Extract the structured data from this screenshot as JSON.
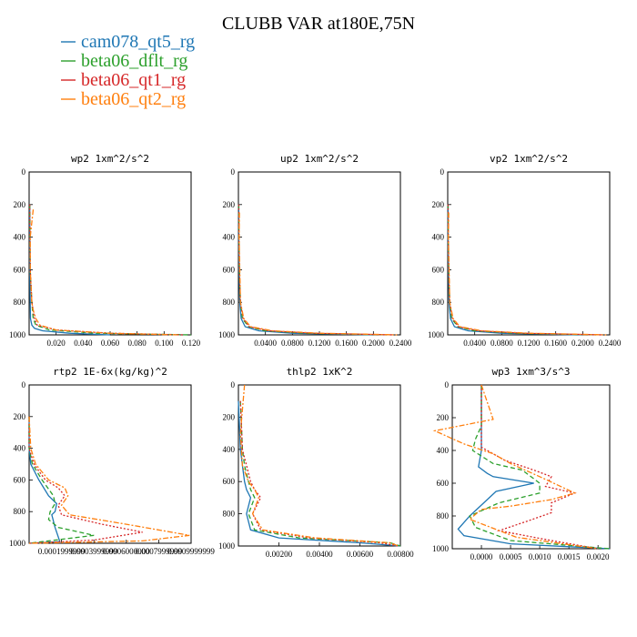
{
  "title": "CLUBB VAR at180E,75N",
  "legend": [
    {
      "label": "cam078_qt5_rg",
      "color": "#1f77b4",
      "dash": "solid"
    },
    {
      "label": "beta06_dflt_rg",
      "color": "#2ca02c",
      "dash": "dashed"
    },
    {
      "label": "beta06_qt1_rg",
      "color": "#d62728",
      "dash": "dotted"
    },
    {
      "label": "beta06_qt2_rg",
      "color": "#ff7f0e",
      "dash": "dashdot"
    }
  ],
  "chart_data": [
    {
      "type": "line",
      "title": "wp2  1xm^2/s^2",
      "xlim": [
        0.0,
        0.12
      ],
      "ylim": [
        1000,
        0
      ],
      "xticks": [
        "0.020",
        "0.040",
        "0.060",
        "0.080",
        "0.100",
        "0.120"
      ],
      "yticks": [
        "0",
        "200",
        "400",
        "600",
        "800",
        "1000"
      ],
      "series": [
        {
          "x": [
            0.0005,
            0.0005,
            0.0005,
            0.0008,
            0.001,
            0.002,
            0.004,
            0.01,
            0.03,
            0.06
          ],
          "y": [
            200,
            400,
            600,
            800,
            900,
            940,
            960,
            975,
            990,
            1000
          ]
        },
        {
          "x": [
            0.0005,
            0.0006,
            0.0008,
            0.002,
            0.0025,
            0.003,
            0.005,
            0.015,
            0.05,
            0.12
          ],
          "y": [
            200,
            400,
            600,
            800,
            850,
            900,
            940,
            970,
            990,
            1000
          ]
        },
        {
          "x": [
            0.0005,
            0.0006,
            0.0008,
            0.002,
            0.003,
            0.004,
            0.006,
            0.02,
            0.06,
            0.115
          ],
          "y": [
            200,
            400,
            600,
            800,
            850,
            900,
            940,
            970,
            990,
            1000
          ]
        },
        {
          "x": [
            0.003,
            0.0008,
            0.0008,
            0.002,
            0.003,
            0.005,
            0.008,
            0.02,
            0.06,
            0.11
          ],
          "y": [
            230,
            400,
            600,
            800,
            850,
            900,
            940,
            970,
            990,
            1000
          ]
        }
      ]
    },
    {
      "type": "line",
      "title": "up2  1xm^2/s^2",
      "xlim": [
        0.0,
        0.24
      ],
      "ylim": [
        1000,
        0
      ],
      "xticks": [
        "0.0400",
        "0.0800",
        "0.1200",
        "0.1600",
        "0.2000",
        "0.2400"
      ],
      "yticks": [
        "0",
        "200",
        "400",
        "600",
        "800",
        "1000"
      ],
      "series": [
        {
          "x": [
            0.0005,
            0.0005,
            0.001,
            0.002,
            0.004,
            0.01,
            0.03,
            0.08,
            0.2
          ],
          "y": [
            200,
            400,
            600,
            800,
            900,
            950,
            975,
            990,
            1000
          ]
        },
        {
          "x": [
            0.0005,
            0.0008,
            0.0015,
            0.003,
            0.006,
            0.015,
            0.04,
            0.1,
            0.22
          ],
          "y": [
            200,
            400,
            600,
            800,
            900,
            950,
            975,
            990,
            1000
          ]
        },
        {
          "x": [
            0.0005,
            0.0008,
            0.0015,
            0.003,
            0.007,
            0.016,
            0.045,
            0.11,
            0.23
          ],
          "y": [
            200,
            400,
            600,
            800,
            900,
            950,
            975,
            990,
            1000
          ]
        },
        {
          "x": [
            0.0015,
            0.001,
            0.002,
            0.003,
            0.008,
            0.018,
            0.05,
            0.12,
            0.235
          ],
          "y": [
            250,
            400,
            600,
            800,
            900,
            950,
            975,
            990,
            1000
          ]
        }
      ]
    },
    {
      "type": "line",
      "title": "vp2  1xm^2/s^2",
      "xlim": [
        0.0,
        0.24
      ],
      "ylim": [
        1000,
        0
      ],
      "xticks": [
        "0.0400",
        "0.0800",
        "0.1200",
        "0.1600",
        "0.2000",
        "0.2400"
      ],
      "yticks": [
        "0",
        "200",
        "400",
        "600",
        "800",
        "1000"
      ],
      "series": [
        {
          "x": [
            0.0005,
            0.0005,
            0.001,
            0.002,
            0.004,
            0.01,
            0.03,
            0.08,
            0.2
          ],
          "y": [
            200,
            400,
            600,
            800,
            900,
            950,
            975,
            990,
            1000
          ]
        },
        {
          "x": [
            0.0005,
            0.0008,
            0.0015,
            0.003,
            0.006,
            0.015,
            0.04,
            0.1,
            0.22
          ],
          "y": [
            200,
            400,
            600,
            800,
            900,
            950,
            975,
            990,
            1000
          ]
        },
        {
          "x": [
            0.0005,
            0.0008,
            0.0015,
            0.003,
            0.007,
            0.016,
            0.045,
            0.11,
            0.23
          ],
          "y": [
            200,
            400,
            600,
            800,
            900,
            950,
            975,
            990,
            1000
          ]
        },
        {
          "x": [
            0.0015,
            0.001,
            0.002,
            0.003,
            0.008,
            0.018,
            0.05,
            0.12,
            0.235
          ],
          "y": [
            250,
            400,
            600,
            800,
            900,
            950,
            975,
            990,
            1000
          ]
        }
      ]
    },
    {
      "type": "line",
      "title": "rtp2  1E-6x(kg/kg)^2",
      "xlim": [
        0.0,
        0.001
      ],
      "ylim": [
        1000,
        0
      ],
      "xticks": [
        "0.0001999999",
        "0.0003999999",
        "0.0006000000",
        "0.0007999999",
        "0.0009999999"
      ],
      "yticks": [
        "0",
        "200",
        "400",
        "600",
        "800",
        "1000"
      ],
      "series": [
        {
          "x": [
            0.0,
            0.0,
            1e-05,
            6e-05,
            0.00012,
            0.00017,
            0.00016,
            0.00014,
            0.00016,
            0.00019,
            0.0
          ],
          "y": [
            200,
            400,
            500,
            600,
            700,
            750,
            800,
            820,
            900,
            990,
            1000
          ]
        },
        {
          "x": [
            0.0,
            0.0,
            2e-05,
            8e-05,
            0.00015,
            0.00016,
            0.00013,
            0.00012,
            0.00018,
            0.0004,
            0.0
          ],
          "y": [
            200,
            400,
            500,
            600,
            700,
            750,
            800,
            850,
            900,
            950,
            1000
          ]
        },
        {
          "x": [
            0.0,
            0.0,
            3e-05,
            0.0001,
            0.00018,
            0.00022,
            0.00018,
            0.0002,
            0.00045,
            0.0007,
            0.0004,
            0.0
          ],
          "y": [
            200,
            400,
            500,
            600,
            650,
            700,
            760,
            820,
            880,
            930,
            980,
            1000
          ]
        },
        {
          "x": [
            0.0,
            1e-05,
            4e-05,
            0.00012,
            0.00022,
            0.00024,
            0.0002,
            0.00025,
            0.0006,
            0.00099,
            0.0007,
            0.0
          ],
          "y": [
            200,
            400,
            500,
            600,
            650,
            700,
            760,
            820,
            880,
            950,
            985,
            1000
          ]
        }
      ]
    },
    {
      "type": "line",
      "title": "thlp2  1xK^2",
      "xlim": [
        0.0,
        0.008
      ],
      "ylim": [
        1000,
        0
      ],
      "xticks": [
        "0.00200",
        "0.00400",
        "0.00600",
        "0.00800"
      ],
      "yticks": [
        "0",
        "200",
        "400",
        "600",
        "800",
        "1000"
      ],
      "series": [
        {
          "x": [
            0.0,
            0.0001,
            0.0002,
            0.0003,
            0.0004,
            0.0006,
            0.0004,
            0.0006,
            0.002,
            0.006,
            0.008
          ],
          "y": [
            100,
            400,
            500,
            600,
            650,
            700,
            800,
            900,
            950,
            980,
            1000
          ]
        },
        {
          "x": [
            0.0001,
            0.0002,
            0.0003,
            0.0005,
            0.0006,
            0.0008,
            0.0005,
            0.0008,
            0.003,
            0.0075,
            0.008
          ],
          "y": [
            100,
            400,
            500,
            600,
            650,
            700,
            800,
            900,
            950,
            980,
            1000
          ]
        },
        {
          "x": [
            0.0001,
            0.0002,
            0.0004,
            0.0006,
            0.0008,
            0.0011,
            0.0007,
            0.0011,
            0.0035,
            0.007,
            0.0079
          ],
          "y": [
            100,
            400,
            500,
            600,
            650,
            700,
            800,
            900,
            950,
            980,
            1000
          ]
        },
        {
          "x": [
            0.0003,
            0.0001,
            0.0002,
            0.0005,
            0.0008,
            0.001,
            0.0007,
            0.0012,
            0.0038,
            0.0075,
            0.0079
          ],
          "y": [
            0,
            300,
            500,
            600,
            650,
            700,
            800,
            900,
            950,
            980,
            1000
          ]
        }
      ]
    },
    {
      "type": "line",
      "title": "wp3  1xm^3/s^3",
      "xlim": [
        -0.0005,
        0.0022
      ],
      "ylim": [
        1000,
        0
      ],
      "xticks": [
        "0.0000",
        "0.0005",
        "0.0010",
        "0.0015",
        "0.0020"
      ],
      "yticks": [
        "0",
        "200",
        "400",
        "600",
        "800",
        "1000"
      ],
      "series": [
        {
          "x": [
            0.0,
            0.0,
            0.0,
            0.0,
            -5e-05,
            0.0001,
            0.0002,
            0.0009,
            0.00025,
            -0.0002,
            -0.0004,
            -0.0003,
            0.0005,
            0.0022
          ],
          "y": [
            0,
            200,
            300,
            400,
            500,
            540,
            560,
            600,
            650,
            800,
            880,
            920,
            970,
            1000
          ]
        },
        {
          "x": [
            0.0,
            0.0,
            -0.0001,
            -0.00015,
            0.0002,
            0.0007,
            0.001,
            0.001,
            0.0003,
            -0.0002,
            -0.0001,
            0.0005,
            0.0022
          ],
          "y": [
            0,
            250,
            330,
            400,
            480,
            520,
            600,
            660,
            720,
            800,
            870,
            950,
            1000
          ]
        },
        {
          "x": [
            0.0,
            0.0,
            0.0,
            0.0004,
            0.0009,
            0.0012,
            0.0011,
            0.0016,
            0.0012,
            0.0012,
            0.0008,
            0.0003,
            0.0012,
            0.002
          ],
          "y": [
            0,
            300,
            380,
            460,
            520,
            560,
            620,
            660,
            720,
            780,
            830,
            890,
            950,
            1000
          ]
        },
        {
          "x": [
            0.0,
            0.0002,
            -0.0008,
            -0.0003,
            0.0002,
            0.0005,
            0.001,
            0.0016,
            0.0012,
            0.0005,
            0.0,
            -0.0002,
            0.0006,
            0.002
          ],
          "y": [
            0,
            210,
            280,
            360,
            420,
            480,
            560,
            660,
            700,
            740,
            760,
            820,
            930,
            1000
          ]
        }
      ]
    }
  ]
}
